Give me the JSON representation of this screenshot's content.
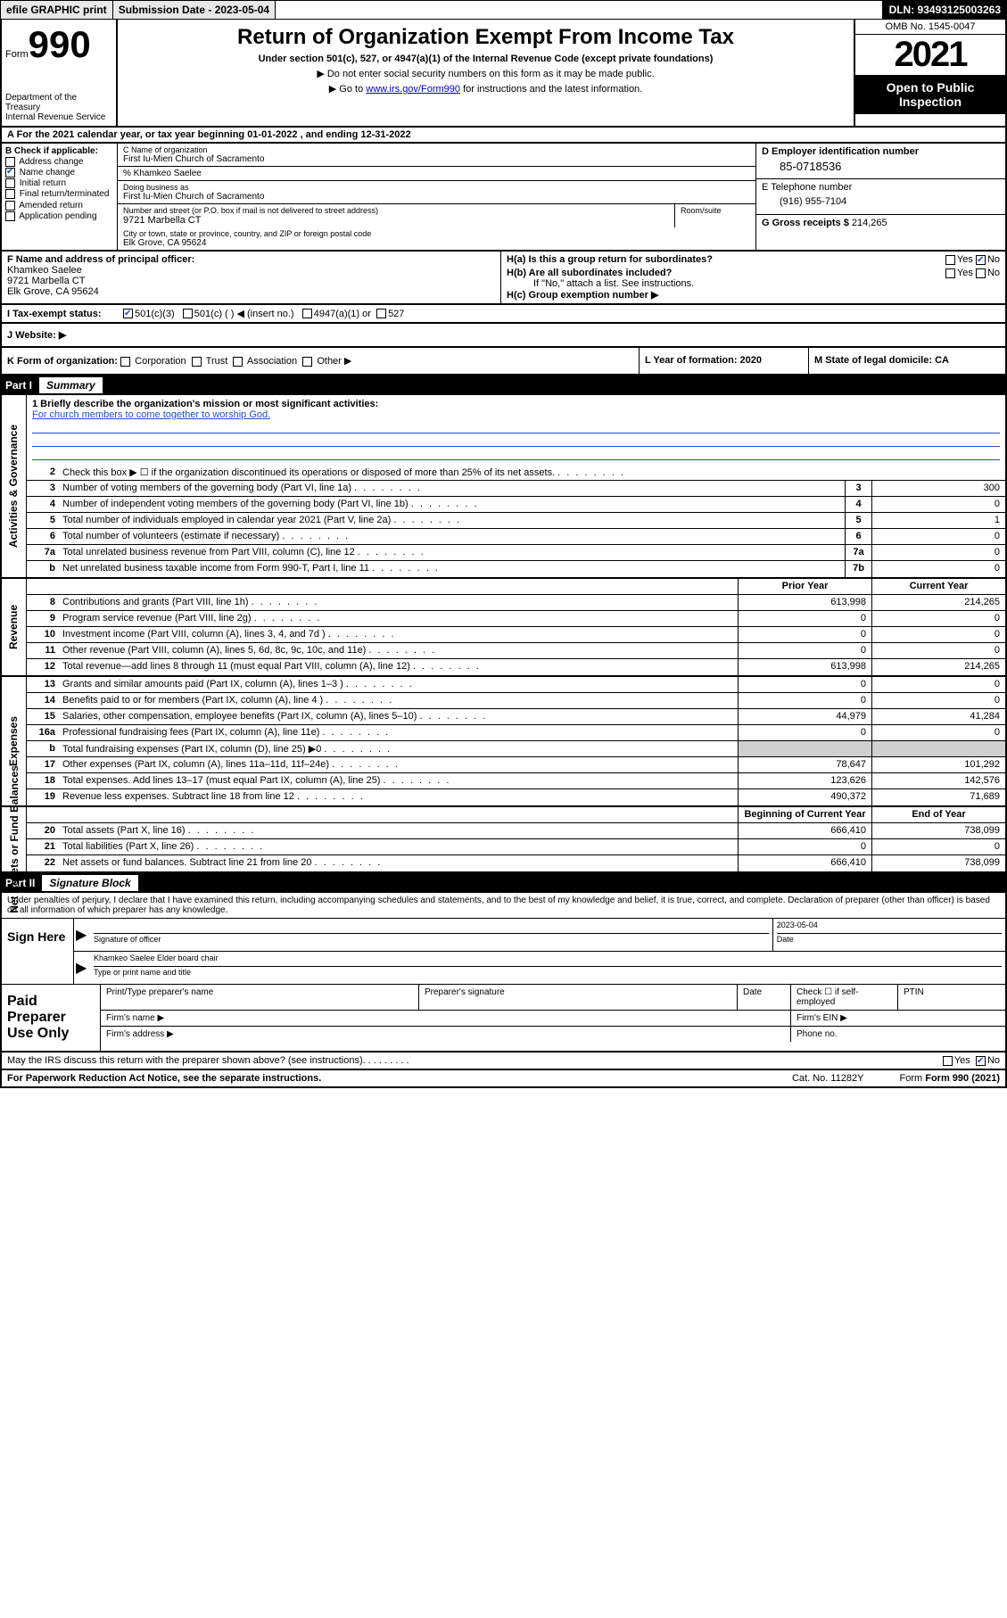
{
  "topbar": {
    "efile": "efile GRAPHIC print",
    "submission_label": "Submission Date - 2023-05-04",
    "dln": "DLN: 93493125003263"
  },
  "header": {
    "form_word": "Form",
    "form_number": "990",
    "dept": "Department of the Treasury\nInternal Revenue Service",
    "title": "Return of Organization Exempt From Income Tax",
    "subtitle": "Under section 501(c), 527, or 4947(a)(1) of the Internal Revenue Code (except private foundations)",
    "note1": "▶ Do not enter social security numbers on this form as it may be made public.",
    "note2_pre": "▶ Go to ",
    "note2_link": "www.irs.gov/Form990",
    "note2_post": " for instructions and the latest information.",
    "omb": "OMB No. 1545-0047",
    "year": "2021",
    "open": "Open to Public Inspection"
  },
  "period": {
    "text": "A For the 2021 calendar year, or tax year beginning 01-01-2022   , and ending 12-31-2022"
  },
  "sectionB": {
    "label": "B Check if applicable:",
    "items": [
      {
        "label": "Address change",
        "checked": false
      },
      {
        "label": "Name change",
        "checked": true
      },
      {
        "label": "Initial return",
        "checked": false
      },
      {
        "label": "Final return/terminated",
        "checked": false
      },
      {
        "label": "Amended return",
        "checked": false
      },
      {
        "label": "Application pending",
        "checked": false
      }
    ]
  },
  "sectionC": {
    "name_label": "C Name of organization",
    "name": "First Iu-Mien Church of Sacramento",
    "care_of": "% Khamkeo Saelee",
    "dba_label": "Doing business as",
    "dba": "First Iu-Mien Church of Sacramento",
    "street_label": "Number and street (or P.O. box if mail is not delivered to street address)",
    "street": "9721 Marbella CT",
    "room_label": "Room/suite",
    "city_label": "City or town, state or province, country, and ZIP or foreign postal code",
    "city": "Elk Grove, CA  95624"
  },
  "sectionD": {
    "label": "D Employer identification number",
    "value": "85-0718536"
  },
  "sectionE": {
    "label": "E Telephone number",
    "value": "(916) 955-7104"
  },
  "sectionG": {
    "label": "G Gross receipts $",
    "value": "214,265"
  },
  "sectionF": {
    "label": "F Name and address of principal officer:",
    "name": "Khamkeo Saelee",
    "street": "9721 Marbella CT",
    "city": "Elk Grove, CA  95624"
  },
  "sectionH": {
    "a": "H(a)  Is this a group return for subordinates?",
    "a_yes": "Yes",
    "a_no": "No",
    "b": "H(b)  Are all subordinates included?",
    "b_note": "If \"No,\" attach a list. See instructions.",
    "c": "H(c)  Group exemption number ▶"
  },
  "sectionI": {
    "label": "I   Tax-exempt status:",
    "opts": [
      "501(c)(3)",
      "501(c) (  ) ◀ (insert no.)",
      "4947(a)(1) or",
      "527"
    ]
  },
  "sectionJ": {
    "label": "J   Website: ▶"
  },
  "sectionK": {
    "label": "K Form of organization:",
    "opts": [
      "Corporation",
      "Trust",
      "Association",
      "Other ▶"
    ]
  },
  "sectionL": {
    "label": "L Year of formation: 2020"
  },
  "sectionM": {
    "label": "M State of legal domicile: CA"
  },
  "part1": {
    "label": "Part I",
    "title": "Summary"
  },
  "mission": {
    "q": "1  Briefly describe the organization's mission or most significant activities:",
    "text": "For church members to come together to worship God."
  },
  "governance": {
    "label": "Activities & Governance",
    "rows": [
      {
        "n": "2",
        "d": "Check this box ▶ ☐  if the organization discontinued its operations or disposed of more than 25% of its net assets."
      },
      {
        "n": "3",
        "d": "Number of voting members of the governing body (Part VI, line 1a)",
        "box": "3",
        "v": "300"
      },
      {
        "n": "4",
        "d": "Number of independent voting members of the governing body (Part VI, line 1b)",
        "box": "4",
        "v": "0"
      },
      {
        "n": "5",
        "d": "Total number of individuals employed in calendar year 2021 (Part V, line 2a)",
        "box": "5",
        "v": "1"
      },
      {
        "n": "6",
        "d": "Total number of volunteers (estimate if necessary)",
        "box": "6",
        "v": "0"
      },
      {
        "n": "7a",
        "d": "Total unrelated business revenue from Part VIII, column (C), line 12",
        "box": "7a",
        "v": "0"
      },
      {
        "n": "b",
        "d": "Net unrelated business taxable income from Form 990-T, Part I, line 11",
        "box": "7b",
        "v": "0"
      }
    ]
  },
  "twocol_hdr": {
    "prior": "Prior Year",
    "current": "Current Year"
  },
  "revenue": {
    "label": "Revenue",
    "rows": [
      {
        "n": "8",
        "d": "Contributions and grants (Part VIII, line 1h)",
        "p": "613,998",
        "c": "214,265"
      },
      {
        "n": "9",
        "d": "Program service revenue (Part VIII, line 2g)",
        "p": "0",
        "c": "0"
      },
      {
        "n": "10",
        "d": "Investment income (Part VIII, column (A), lines 3, 4, and 7d )",
        "p": "0",
        "c": "0"
      },
      {
        "n": "11",
        "d": "Other revenue (Part VIII, column (A), lines 5, 6d, 8c, 9c, 10c, and 11e)",
        "p": "0",
        "c": "0"
      },
      {
        "n": "12",
        "d": "Total revenue—add lines 8 through 11 (must equal Part VIII, column (A), line 12)",
        "p": "613,998",
        "c": "214,265"
      }
    ]
  },
  "expenses": {
    "label": "Expenses",
    "rows": [
      {
        "n": "13",
        "d": "Grants and similar amounts paid (Part IX, column (A), lines 1–3 )",
        "p": "0",
        "c": "0"
      },
      {
        "n": "14",
        "d": "Benefits paid to or for members (Part IX, column (A), line 4 )",
        "p": "0",
        "c": "0"
      },
      {
        "n": "15",
        "d": "Salaries, other compensation, employee benefits (Part IX, column (A), lines 5–10)",
        "p": "44,979",
        "c": "41,284"
      },
      {
        "n": "16a",
        "d": "Professional fundraising fees (Part IX, column (A), line 11e)",
        "p": "0",
        "c": "0"
      },
      {
        "n": "b",
        "d": "Total fundraising expenses (Part IX, column (D), line 25) ▶0",
        "p": "shade",
        "c": "shade"
      },
      {
        "n": "17",
        "d": "Other expenses (Part IX, column (A), lines 11a–11d, 11f–24e)",
        "p": "78,647",
        "c": "101,292"
      },
      {
        "n": "18",
        "d": "Total expenses. Add lines 13–17 (must equal Part IX, column (A), line 25)",
        "p": "123,626",
        "c": "142,576"
      },
      {
        "n": "19",
        "d": "Revenue less expenses. Subtract line 18 from line 12",
        "p": "490,372",
        "c": "71,689"
      }
    ]
  },
  "netassets": {
    "label": "Net Assets or Fund Balances",
    "hdr": {
      "begin": "Beginning of Current Year",
      "end": "End of Year"
    },
    "rows": [
      {
        "n": "20",
        "d": "Total assets (Part X, line 16)",
        "p": "666,410",
        "c": "738,099"
      },
      {
        "n": "21",
        "d": "Total liabilities (Part X, line 26)",
        "p": "0",
        "c": "0"
      },
      {
        "n": "22",
        "d": "Net assets or fund balances. Subtract line 21 from line 20",
        "p": "666,410",
        "c": "738,099"
      }
    ]
  },
  "part2": {
    "label": "Part II",
    "title": "Signature Block"
  },
  "sig": {
    "intro": "Under penalties of perjury, I declare that I have examined this return, including accompanying schedules and statements, and to the best of my knowledge and belief, it is true, correct, and complete. Declaration of preparer (other than officer) is based on all information of which preparer has any knowledge.",
    "sign_here": "Sign Here",
    "officer_sig": "Signature of officer",
    "date": "Date",
    "date_val": "2023-05-04",
    "officer_name": "Khamkeo Saelee  Elder board chair",
    "name_label": "Type or print name and title",
    "paid": "Paid Preparer Use Only",
    "prep_name": "Print/Type preparer's name",
    "prep_sig": "Preparer's signature",
    "prep_date": "Date",
    "check_self": "Check ☐ if self-employed",
    "ptin": "PTIN",
    "firm_name": "Firm's name  ▶",
    "firm_ein": "Firm's EIN ▶",
    "firm_addr": "Firm's address ▶",
    "phone": "Phone no."
  },
  "footer": {
    "discuss": "May the IRS discuss this return with the preparer shown above? (see instructions)",
    "yes": "Yes",
    "no": "No",
    "paperwork": "For Paperwork Reduction Act Notice, see the separate instructions.",
    "cat": "Cat. No. 11282Y",
    "form": "Form 990 (2021)"
  }
}
